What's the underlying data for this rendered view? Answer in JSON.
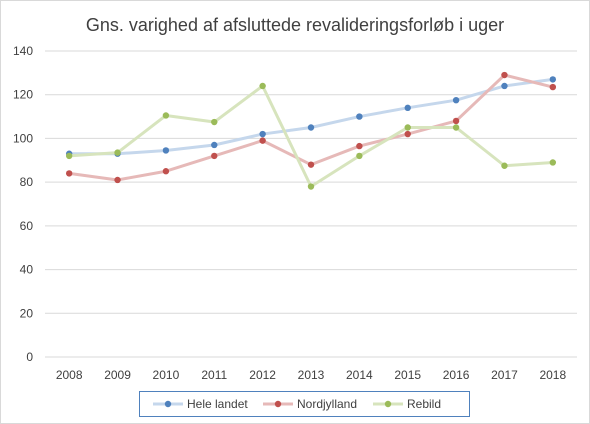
{
  "chart_data": {
    "type": "line",
    "title": "Gns. varighed af afsluttede revalideringsforløb i uger",
    "xlabel": "",
    "ylabel": "",
    "categories": [
      "2008",
      "2009",
      "2010",
      "2011",
      "2012",
      "2013",
      "2014",
      "2015",
      "2016",
      "2017",
      "2018"
    ],
    "ylim": [
      0,
      140
    ],
    "yticks": [
      0,
      20,
      40,
      60,
      80,
      100,
      120,
      140
    ],
    "grid": true,
    "legend_position": "bottom",
    "series": [
      {
        "name": "Hele landet",
        "line_color": "#c5d7ec",
        "marker_color": "#4f81bd",
        "values": [
          93,
          93,
          94.5,
          97,
          102,
          105,
          110,
          114,
          117.5,
          124,
          127
        ]
      },
      {
        "name": "Nordjylland",
        "line_color": "#e6b9b8",
        "marker_color": "#c0504d",
        "values": [
          84,
          81,
          85,
          92,
          99,
          88,
          96.5,
          102,
          108,
          129,
          123.5
        ]
      },
      {
        "name": "Rebild",
        "line_color": "#d7e4bd",
        "marker_color": "#9bbb59",
        "values": [
          92,
          93.5,
          110.5,
          107.5,
          124,
          78,
          92,
          105,
          105,
          87.5,
          89
        ]
      }
    ]
  }
}
